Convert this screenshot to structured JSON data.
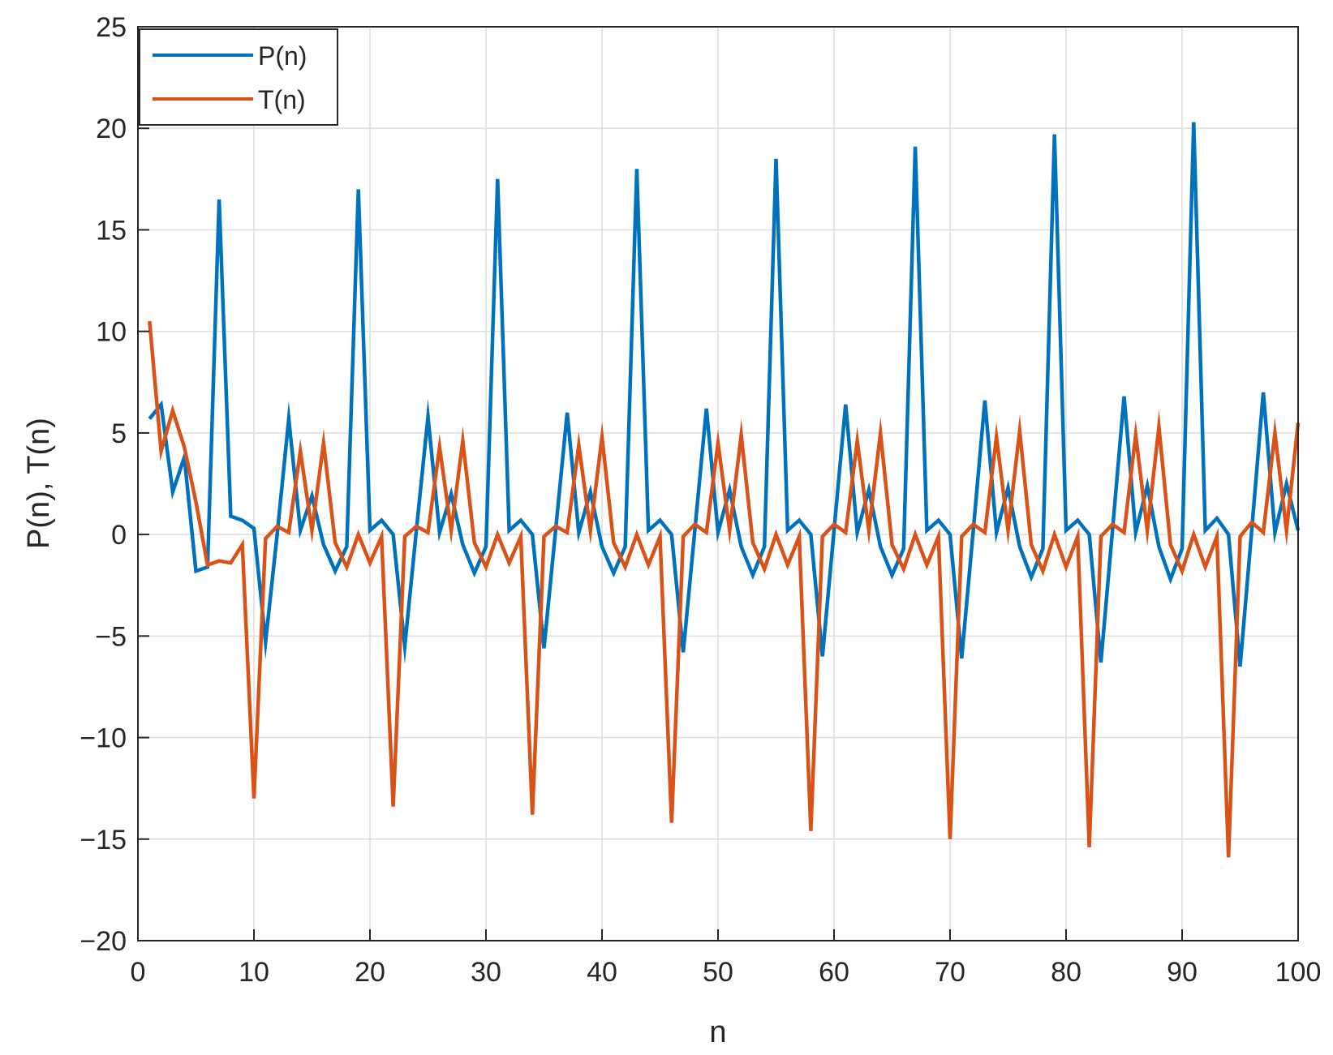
{
  "chart_data": {
    "type": "line",
    "title": "",
    "xlabel": "n",
    "ylabel": "P(n), T(n)",
    "xlim": [
      0,
      100
    ],
    "ylim": [
      -20,
      25
    ],
    "grid": true,
    "legend_placement": "top-left",
    "x_ticks": [
      0,
      10,
      20,
      30,
      40,
      50,
      60,
      70,
      80,
      90,
      100
    ],
    "y_ticks": [
      -20,
      -15,
      -10,
      -5,
      0,
      5,
      10,
      15,
      20,
      25
    ],
    "x_tick_labels": [
      "0",
      "10",
      "20",
      "30",
      "40",
      "50",
      "60",
      "70",
      "80",
      "90",
      "100"
    ],
    "y_tick_labels": [
      "−20",
      "−15",
      "−10",
      "−5",
      "0",
      "5",
      "10",
      "15",
      "20",
      "25"
    ],
    "x": [
      1,
      2,
      3,
      4,
      5,
      6,
      7,
      8,
      9,
      10,
      11,
      12,
      13,
      14,
      15,
      16,
      17,
      18,
      19,
      20,
      21,
      22,
      23,
      24,
      25,
      26,
      27,
      28,
      29,
      30,
      31,
      32,
      33,
      34,
      35,
      36,
      37,
      38,
      39,
      40,
      41,
      42,
      43,
      44,
      45,
      46,
      47,
      48,
      49,
      50,
      51,
      52,
      53,
      54,
      55,
      56,
      57,
      58,
      59,
      60,
      61,
      62,
      63,
      64,
      65,
      66,
      67,
      68,
      69,
      70,
      71,
      72,
      73,
      74,
      75,
      76,
      77,
      78,
      79,
      80,
      81,
      82,
      83,
      84,
      85,
      86,
      87,
      88,
      89,
      90,
      91,
      92,
      93,
      94,
      95,
      96,
      97,
      98,
      99,
      100
    ],
    "series": [
      {
        "name": "P(n)",
        "color": "#0072bd",
        "values": [
          5.7,
          6.4,
          2.1,
          3.8,
          -1.8,
          -1.6,
          16.5,
          0.9,
          0.7,
          0.3,
          -5.3,
          0.0,
          5.7,
          0.2,
          1.9,
          -0.5,
          -1.8,
          -0.6,
          17.0,
          0.2,
          0.7,
          0.0,
          -5.5,
          0.2,
          5.8,
          0.1,
          2.0,
          -0.5,
          -1.9,
          -0.6,
          17.5,
          0.2,
          0.7,
          0.0,
          -5.6,
          0.2,
          6.0,
          0.1,
          2.1,
          -0.6,
          -1.9,
          -0.6,
          18.0,
          0.2,
          0.7,
          0.0,
          -5.8,
          0.2,
          6.2,
          0.1,
          2.2,
          -0.6,
          -2.0,
          -0.6,
          18.5,
          0.2,
          0.7,
          0.0,
          -6.0,
          0.2,
          6.4,
          0.1,
          2.2,
          -0.6,
          -2.0,
          -0.7,
          19.1,
          0.2,
          0.7,
          0.0,
          -6.1,
          0.2,
          6.6,
          0.1,
          2.3,
          -0.6,
          -2.1,
          -0.7,
          19.7,
          0.2,
          0.7,
          0.0,
          -6.3,
          0.2,
          6.8,
          0.1,
          2.4,
          -0.6,
          -2.2,
          -0.7,
          20.3,
          0.2,
          0.8,
          0.0,
          -6.5,
          0.2,
          7.0,
          0.1,
          2.5,
          0.2
        ]
      },
      {
        "name": "T(n)",
        "color": "#d95319",
        "values": [
          10.5,
          4.1,
          6.1,
          4.3,
          1.6,
          -1.5,
          -1.3,
          -1.4,
          -0.5,
          -13.0,
          -0.2,
          0.4,
          0.1,
          4.1,
          0.2,
          4.5,
          -0.4,
          -1.6,
          0.0,
          -1.4,
          -0.1,
          -13.4,
          -0.1,
          0.4,
          0.1,
          4.3,
          0.2,
          4.6,
          -0.4,
          -1.6,
          0.0,
          -1.4,
          -0.1,
          -13.8,
          -0.1,
          0.4,
          0.1,
          4.4,
          0.2,
          4.8,
          -0.4,
          -1.6,
          0.0,
          -1.5,
          -0.1,
          -14.2,
          -0.1,
          0.5,
          0.1,
          4.5,
          0.2,
          4.9,
          -0.4,
          -1.7,
          0.0,
          -1.5,
          -0.1,
          -14.6,
          -0.1,
          0.5,
          0.1,
          4.6,
          0.2,
          5.0,
          -0.5,
          -1.7,
          0.0,
          -1.5,
          -0.1,
          -15.0,
          -0.1,
          0.5,
          0.1,
          4.8,
          0.2,
          5.1,
          -0.5,
          -1.8,
          0.0,
          -1.6,
          -0.1,
          -15.4,
          -0.1,
          0.5,
          0.1,
          4.9,
          0.2,
          5.3,
          -0.5,
          -1.8,
          0.0,
          -1.6,
          -0.1,
          -15.9,
          -0.1,
          0.6,
          0.1,
          5.0,
          0.2,
          5.5
        ]
      }
    ]
  }
}
